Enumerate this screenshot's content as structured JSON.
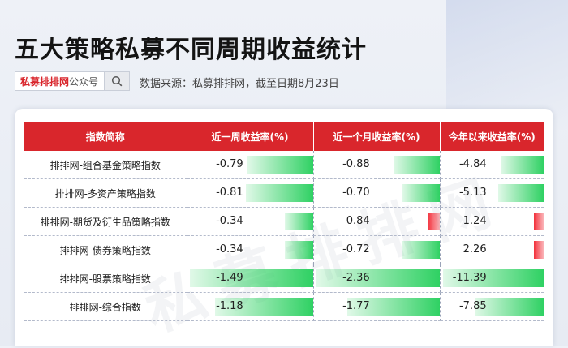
{
  "title": "五大策略私募不同周期收益统计",
  "search": {
    "brand": "私募排排网",
    "suffix": "公众号"
  },
  "source_note": "数据来源：私募排排网，截至日期8月23日",
  "watermark": "私募排排网",
  "table": {
    "headers": [
      "指数简称",
      "近一周收益率(%)",
      "近一个月收益率(%)",
      "今年以来收益率(%)"
    ],
    "rows": [
      {
        "name": "排排网-组合基金策略指数",
        "week": "-0.79",
        "month": "-0.88",
        "ytd": "-4.84"
      },
      {
        "name": "排排网-多资产策略指数",
        "week": "-0.81",
        "month": "-0.70",
        "ytd": "-5.13"
      },
      {
        "name": "排排网-期货及衍生品策略指数",
        "week": "-0.34",
        "month": "0.84",
        "ytd": "1.24"
      },
      {
        "name": "排排网-债券策略指数",
        "week": "-0.34",
        "month": "-0.72",
        "ytd": "2.26"
      },
      {
        "name": "排排网-股票策略指数",
        "week": "-1.49",
        "month": "-2.36",
        "ytd": "-11.39"
      },
      {
        "name": "排排网-综合指数",
        "week": "-1.18",
        "month": "-1.77",
        "ytd": "-7.85"
      }
    ]
  },
  "colors": {
    "header_red": "#d9262c",
    "negative_green": "#2fd163",
    "positive_red": "#f3303b"
  }
}
